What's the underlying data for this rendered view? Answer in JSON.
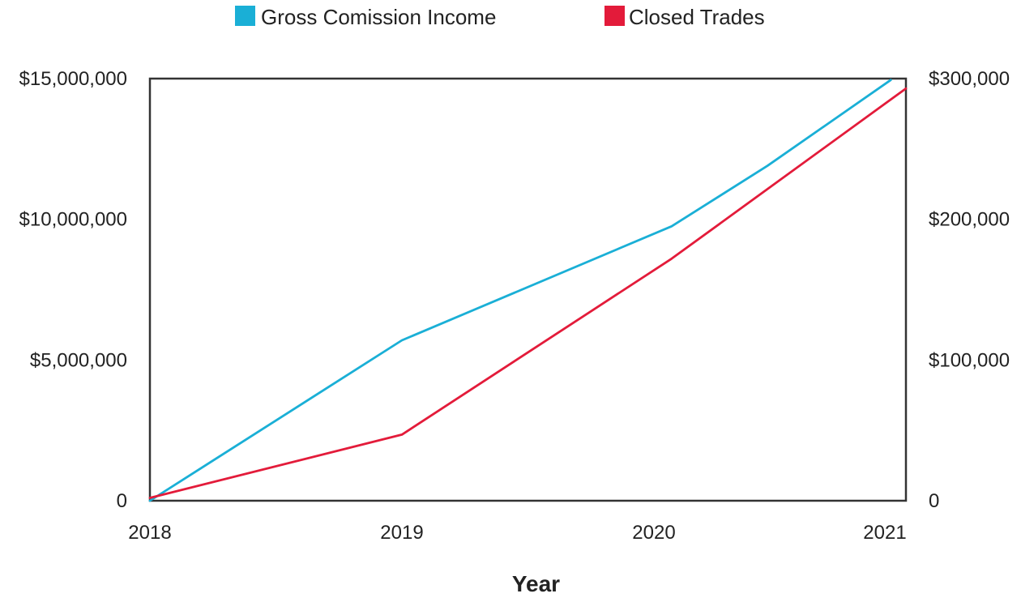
{
  "chart_data": {
    "type": "line",
    "title": "",
    "xlabel": "Year",
    "ylabel_left": "",
    "ylabel_right": "",
    "x_ticks": [
      "2018",
      "2019",
      "2020",
      "2021"
    ],
    "xlim": [
      2018,
      2021
    ],
    "y_left": {
      "lim": [
        0,
        15000000
      ],
      "ticks": [
        {
          "value": 0,
          "label": "0"
        },
        {
          "value": 5000000,
          "label": "$5,000,000"
        },
        {
          "value": 10000000,
          "label": "$10,000,000"
        },
        {
          "value": 15000000,
          "label": "$15,000,000"
        }
      ]
    },
    "y_right": {
      "lim": [
        0,
        300000
      ],
      "ticks": [
        {
          "value": 0,
          "label": "0"
        },
        {
          "value": 100000,
          "label": "$100,000"
        },
        {
          "value": 200000,
          "label": "$200,000"
        },
        {
          "value": 300000,
          "label": "$300,000"
        }
      ]
    },
    "grid": false,
    "legend_position": "top-center",
    "series": [
      {
        "name": "Gross Comission Income",
        "axis": "left",
        "color": "#1aafd6",
        "points": [
          {
            "x": 2018,
            "y": 0
          },
          {
            "x": 2019,
            "y": 5700000
          },
          {
            "x": 2020.07,
            "y": 9750000
          },
          {
            "x": 2020.45,
            "y": 11900000
          },
          {
            "x": 2020.94,
            "y": 14950000
          }
        ]
      },
      {
        "name": "Closed Trades",
        "axis": "right",
        "color": "#e31b3a",
        "points": [
          {
            "x": 2018,
            "y": 2000
          },
          {
            "x": 2019,
            "y": 47000
          },
          {
            "x": 2020.07,
            "y": 172000
          },
          {
            "x": 2021,
            "y": 293000
          }
        ]
      }
    ]
  }
}
